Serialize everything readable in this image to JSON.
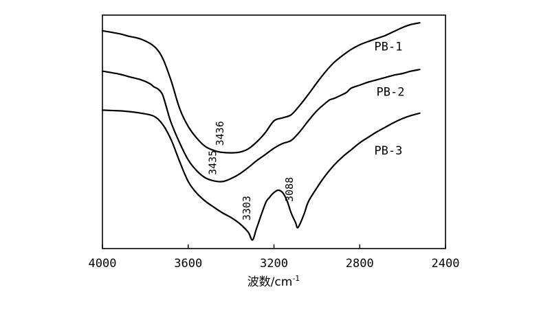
{
  "chart_data": {
    "type": "line",
    "title": "",
    "xlabel": "波数/cm",
    "xlabel_sup": "-1",
    "ylabel": "",
    "xlim": [
      4000,
      2400
    ],
    "x_reversed": true,
    "y_relative": true,
    "ylim": [
      0,
      100
    ],
    "x_ticks": [
      4000,
      3600,
      3200,
      2800,
      2400
    ],
    "grid": false,
    "legend": "inline",
    "series": [
      {
        "name": "PB-1",
        "x": [
          4000,
          3920,
          3880,
          3820,
          3760,
          3720,
          3680,
          3640,
          3600,
          3560,
          3520,
          3480,
          3450,
          3400,
          3360,
          3320,
          3280,
          3240,
          3200,
          3160,
          3120,
          3080,
          3040,
          3000,
          2960,
          2920,
          2880,
          2840,
          2800,
          2760,
          2720,
          2680,
          2640,
          2600,
          2560,
          2520
        ],
        "y": [
          93.3,
          92.0,
          91.0,
          89.7,
          86.7,
          81.7,
          72.0,
          60.0,
          52.3,
          47.3,
          43.7,
          42.0,
          41.3,
          41.0,
          41.3,
          42.7,
          45.7,
          49.7,
          54.7,
          56.0,
          57.3,
          61.3,
          66.0,
          71.0,
          75.7,
          79.7,
          82.7,
          85.3,
          87.3,
          88.7,
          90.0,
          91.3,
          93.0,
          94.7,
          96.0,
          96.7
        ]
      },
      {
        "name": "PB-2",
        "x": [
          4000,
          3920,
          3880,
          3820,
          3780,
          3760,
          3740,
          3720,
          3700,
          3680,
          3640,
          3600,
          3560,
          3520,
          3480,
          3440,
          3400,
          3360,
          3320,
          3280,
          3240,
          3200,
          3160,
          3120,
          3080,
          3040,
          3000,
          2960,
          2940,
          2920,
          2880,
          2860,
          2840,
          2800,
          2760,
          2720,
          2680,
          2640,
          2600,
          2560,
          2520
        ],
        "y": [
          76.0,
          74.7,
          73.7,
          72.3,
          70.7,
          69.3,
          68.3,
          66.0,
          60.0,
          54.0,
          45.3,
          38.0,
          33.3,
          30.3,
          29.0,
          28.7,
          30.0,
          32.0,
          34.7,
          37.7,
          40.3,
          43.0,
          45.0,
          46.3,
          50.0,
          54.7,
          59.0,
          62.3,
          63.7,
          64.3,
          66.0,
          67.0,
          68.7,
          70.0,
          71.3,
          72.3,
          73.3,
          74.3,
          75.0,
          76.0,
          76.7
        ]
      },
      {
        "name": "PB-3",
        "x": [
          4000,
          3920,
          3880,
          3820,
          3760,
          3720,
          3680,
          3640,
          3600,
          3560,
          3520,
          3480,
          3440,
          3400,
          3360,
          3320,
          3300,
          3280,
          3240,
          3220,
          3200,
          3180,
          3160,
          3140,
          3120,
          3100,
          3088,
          3060,
          3040,
          3000,
          2960,
          2920,
          2880,
          2840,
          2800,
          2760,
          2720,
          2680,
          2640,
          2600,
          2560,
          2520
        ],
        "y": [
          59.3,
          59.0,
          58.7,
          58.0,
          56.7,
          53.3,
          46.7,
          37.3,
          28.7,
          23.7,
          20.3,
          17.7,
          15.3,
          13.3,
          10.7,
          7.0,
          3.7,
          9.0,
          19.3,
          22.0,
          24.0,
          25.0,
          24.0,
          20.7,
          15.3,
          11.3,
          9.0,
          14.7,
          20.0,
          26.0,
          31.3,
          35.7,
          39.3,
          42.3,
          45.3,
          47.7,
          50.0,
          52.0,
          54.0,
          55.7,
          57.0,
          58.0
        ]
      }
    ],
    "annotations": [
      {
        "text": "3436",
        "x": 3436,
        "y": 44.0
      },
      {
        "text": "3435",
        "x": 3470,
        "y": 31.5
      },
      {
        "text": "3303",
        "x": 3310,
        "y": 12.0
      },
      {
        "text": "3088",
        "x": 3112,
        "y": 20.0
      }
    ]
  }
}
